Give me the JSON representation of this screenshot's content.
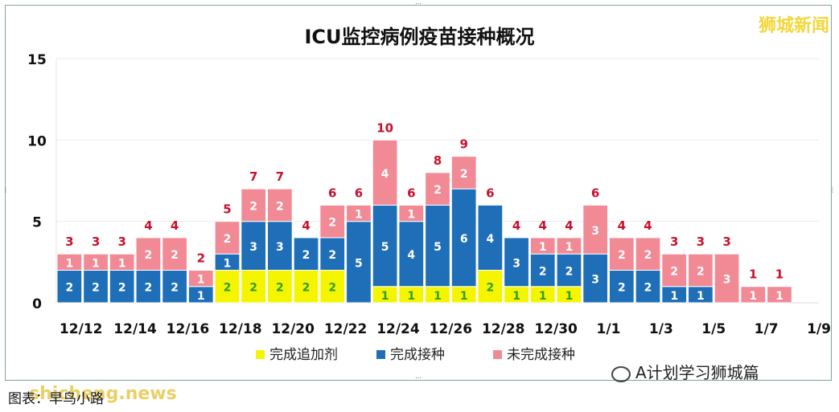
{
  "watermark": "狮城新闻",
  "source_badge": "A计划学习狮城篇",
  "caption": "图表：早鸟小路",
  "caption_watermark": "shicheng.news",
  "chart_data": {
    "type": "bar",
    "stacked": true,
    "title": "ICU监控病例疫苗接种概况",
    "xlabel": "",
    "ylabel": "",
    "ylim": [
      0,
      15
    ],
    "yticks": [
      0,
      5,
      10,
      15
    ],
    "grid": true,
    "legend_position": "bottom",
    "categories": [
      "12/12",
      "12/13",
      "12/14",
      "12/15",
      "12/16",
      "12/17",
      "12/18",
      "12/19",
      "12/20",
      "12/21",
      "12/22",
      "12/23",
      "12/24",
      "12/25",
      "12/26",
      "12/27",
      "12/28",
      "12/29",
      "12/30",
      "12/31",
      "1/1",
      "1/2",
      "1/3",
      "1/4",
      "1/5",
      "1/6",
      "1/7",
      "1/8",
      "1/9"
    ],
    "tick_labels": [
      "12/12",
      "12/14",
      "12/16",
      "12/18",
      "12/20",
      "12/22",
      "12/24",
      "12/26",
      "12/28",
      "12/30",
      "1/1",
      "1/3",
      "1/5",
      "1/7",
      "1/9"
    ],
    "series": [
      {
        "name": "完成追加剂",
        "color": "#f5f500",
        "label_color": "#2e9e2e",
        "values": [
          0,
          0,
          0,
          0,
          0,
          0,
          2,
          2,
          2,
          2,
          2,
          0,
          1,
          1,
          1,
          1,
          2,
          1,
          1,
          1,
          0,
          0,
          0,
          0,
          0,
          0,
          0,
          0,
          0
        ]
      },
      {
        "name": "完成接种",
        "color": "#1f6fb8",
        "label_color": "#ffffff",
        "values": [
          2,
          2,
          2,
          2,
          2,
          1,
          1,
          3,
          3,
          2,
          2,
          5,
          5,
          4,
          5,
          6,
          4,
          3,
          2,
          2,
          3,
          2,
          2,
          1,
          1,
          0,
          0,
          0,
          0
        ]
      },
      {
        "name": "未完成接种",
        "color": "#f28a96",
        "label_color": "#ffffff",
        "values": [
          1,
          1,
          1,
          2,
          2,
          1,
          2,
          2,
          2,
          0,
          2,
          1,
          4,
          1,
          2,
          2,
          0,
          0,
          1,
          1,
          3,
          2,
          2,
          2,
          2,
          3,
          1,
          1,
          0
        ]
      }
    ],
    "totals": [
      3,
      3,
      3,
      4,
      4,
      2,
      5,
      7,
      7,
      4,
      6,
      6,
      10,
      6,
      8,
      9,
      6,
      4,
      4,
      4,
      6,
      4,
      4,
      3,
      3,
      3,
      1,
      1,
      0
    ],
    "total_label_color": "#c8102e"
  }
}
